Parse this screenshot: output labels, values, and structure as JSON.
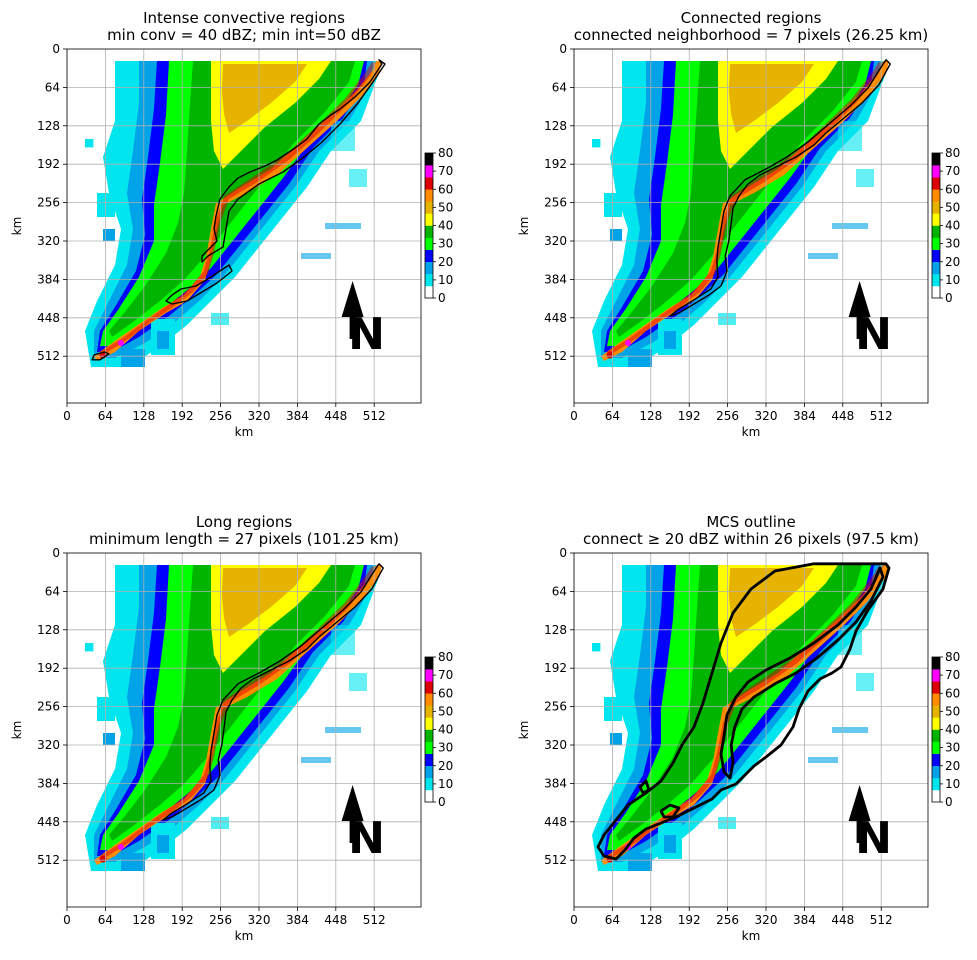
{
  "figure": {
    "colors": {
      "background": "#ffffff",
      "grid": "#b0b0b0",
      "outline": "#000000",
      "cbar": [
        "#ffffff",
        "#00e5ee",
        "#00a2e8",
        "#0000ff",
        "#00ff00",
        "#00b400",
        "#ffff00",
        "#e6b400",
        "#ff8c00",
        "#dd0000",
        "#ff00ff",
        "#000000"
      ]
    },
    "icon": "north-arrow-icon"
  },
  "chart_data": [
    {
      "type": "heatmap",
      "title_line1": "Intense convective regions",
      "title_line2": "min conv = 40 dBZ; min int=50 dBZ",
      "xlabel": "km",
      "ylabel": "km",
      "xticks": [
        "0",
        "64",
        "128",
        "192",
        "256",
        "320",
        "384",
        "448",
        "512"
      ],
      "yticks": [
        "0",
        "64",
        "128",
        "192",
        "256",
        "320",
        "384",
        "448",
        "512"
      ],
      "xlim": [
        0,
        590
      ],
      "ylim": [
        590,
        0
      ],
      "grid": true,
      "colorbar_label_ticks": [
        "0",
        "10",
        "20",
        "30",
        "40",
        "50",
        "60",
        "70",
        "80"
      ],
      "colorbar_range_dbz": [
        0,
        80
      ],
      "north_label": "N",
      "outline_style": "thin-contour-around-intense-cells"
    },
    {
      "type": "heatmap",
      "title_line1": "Connected regions",
      "title_line2": "connected neighborhood = 7 pixels (26.25 km)",
      "xlabel": "km",
      "ylabel": "km",
      "xticks": [
        "0",
        "64",
        "128",
        "192",
        "256",
        "320",
        "384",
        "448",
        "512"
      ],
      "yticks": [
        "0",
        "64",
        "128",
        "192",
        "256",
        "320",
        "384",
        "448",
        "512"
      ],
      "xlim": [
        0,
        590
      ],
      "ylim": [
        590,
        0
      ],
      "grid": true,
      "colorbar_label_ticks": [
        "0",
        "10",
        "20",
        "30",
        "40",
        "50",
        "60",
        "70",
        "80"
      ],
      "colorbar_range_dbz": [
        0,
        80
      ],
      "north_label": "N",
      "outline_style": "thin-contour-connected-line"
    },
    {
      "type": "heatmap",
      "title_line1": "Long regions",
      "title_line2": "minimum length = 27 pixels (101.25 km)",
      "xlabel": "km",
      "ylabel": "km",
      "xticks": [
        "0",
        "64",
        "128",
        "192",
        "256",
        "320",
        "384",
        "448",
        "512"
      ],
      "yticks": [
        "0",
        "64",
        "128",
        "192",
        "256",
        "320",
        "384",
        "448",
        "512"
      ],
      "xlim": [
        0,
        590
      ],
      "ylim": [
        590,
        0
      ],
      "grid": true,
      "colorbar_label_ticks": [
        "0",
        "10",
        "20",
        "30",
        "40",
        "50",
        "60",
        "70",
        "80"
      ],
      "colorbar_range_dbz": [
        0,
        80
      ],
      "north_label": "N",
      "outline_style": "thin-contour-long-line"
    },
    {
      "type": "heatmap",
      "title_line1": "MCS outline",
      "title_line2": "connect ≥ 20 dBZ within 26 pixels (97.5 km)",
      "xlabel": "km",
      "ylabel": "km",
      "xticks": [
        "0",
        "64",
        "128",
        "192",
        "256",
        "320",
        "384",
        "448",
        "512"
      ],
      "yticks": [
        "0",
        "64",
        "128",
        "192",
        "256",
        "320",
        "384",
        "448",
        "512"
      ],
      "xlim": [
        0,
        590
      ],
      "ylim": [
        590,
        0
      ],
      "grid": true,
      "colorbar_label_ticks": [
        "0",
        "10",
        "20",
        "30",
        "40",
        "50",
        "60",
        "70",
        "80"
      ],
      "colorbar_range_dbz": [
        0,
        80
      ],
      "north_label": "N",
      "outline_style": "thick-mcs-outline"
    }
  ]
}
